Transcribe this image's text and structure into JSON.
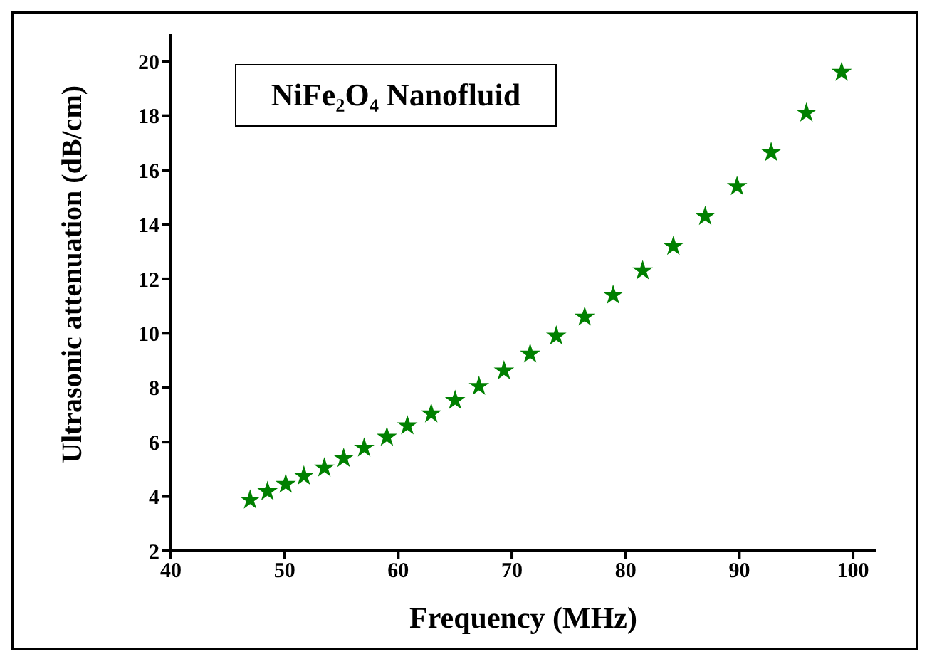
{
  "chart_data": {
    "type": "scatter",
    "title": "NiFe₂O₄ Nanofluid",
    "xlabel": "Frequency (MHz)",
    "ylabel": "Ultrasonic attenuation (dB/cm)",
    "x": [
      46.97,
      48.5,
      50.1,
      51.7,
      53.5,
      55.2,
      57.0,
      59.0,
      60.8,
      62.9,
      65.0,
      67.1,
      69.3,
      71.6,
      73.9,
      76.4,
      78.9,
      81.5,
      84.2,
      87.0,
      89.8,
      92.8,
      95.9,
      99.0
    ],
    "series": [
      {
        "color": "#008000",
        "values": [
          3.87,
          4.18,
          4.45,
          4.75,
          5.05,
          5.4,
          5.78,
          6.18,
          6.6,
          7.04,
          7.53,
          8.05,
          8.62,
          9.24,
          9.9,
          10.6,
          11.4,
          12.3,
          13.2,
          14.3,
          15.4,
          16.65,
          18.1,
          19.6
        ]
      }
    ],
    "xlim": [
      40,
      102
    ],
    "xticks": [
      40,
      50,
      60,
      70,
      80,
      90,
      100
    ],
    "ylim": [
      2,
      21
    ],
    "yticks": [
      2,
      4,
      6,
      8,
      10,
      12,
      14,
      16,
      18,
      20
    ],
    "grid": false,
    "legend": false,
    "marker": "star"
  }
}
